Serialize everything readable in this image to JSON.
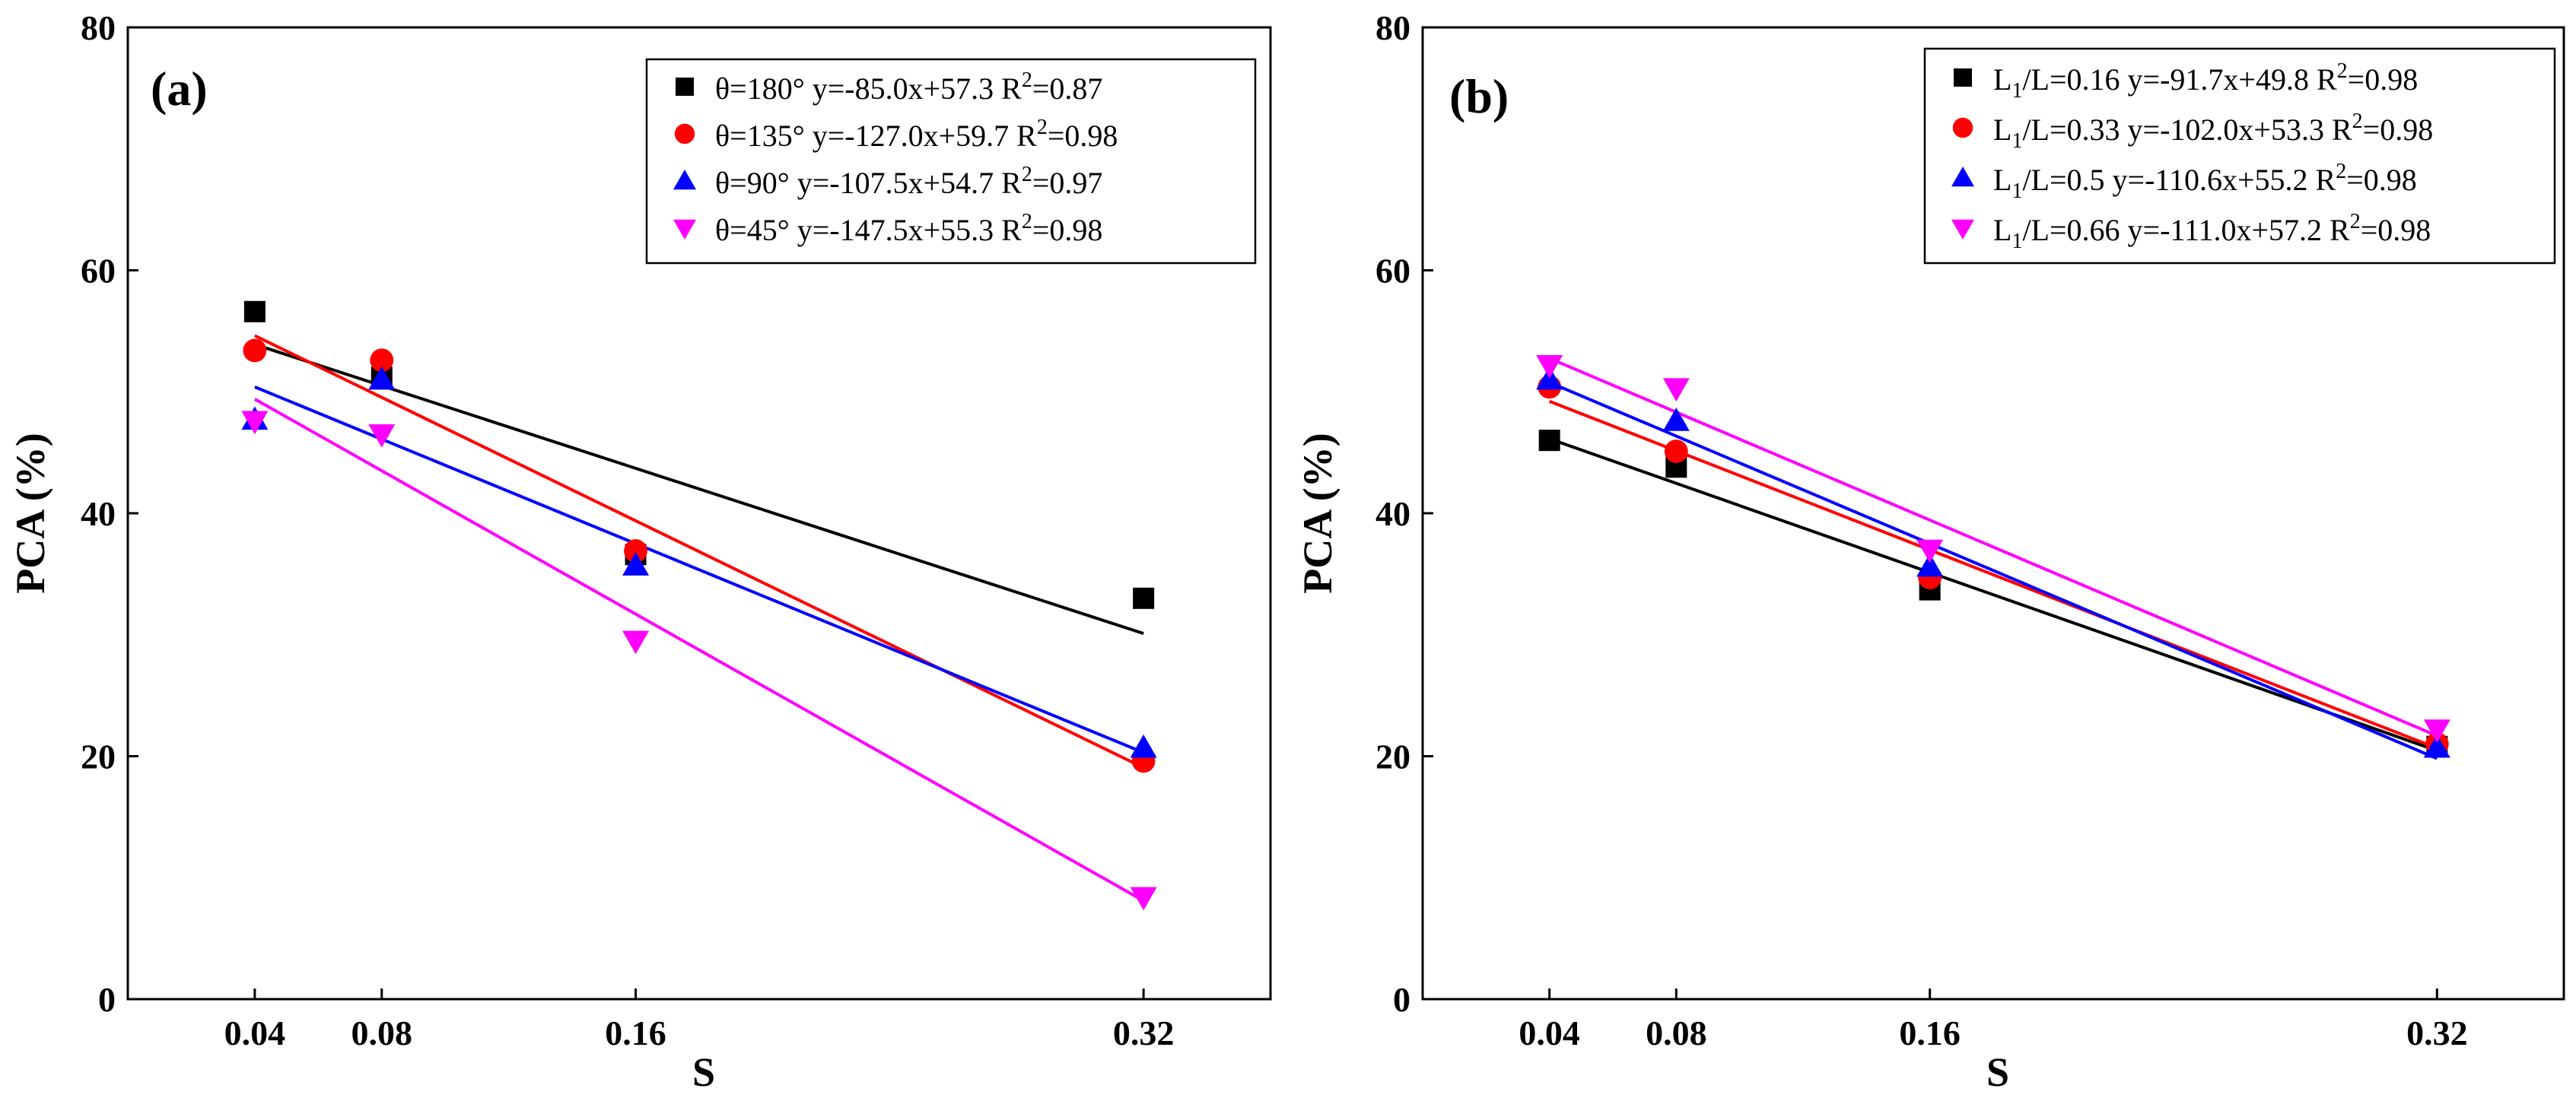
{
  "chart_data": [
    {
      "type": "scatter",
      "panel_label": "(a)",
      "xlabel": "S",
      "ylabel": "PCA (%)",
      "x_ticks": [
        0.04,
        0.08,
        0.16,
        0.32
      ],
      "x_tick_labels": [
        "0.04",
        "0.08",
        "0.16",
        "0.32"
      ],
      "y_ticks": [
        0,
        20,
        40,
        60,
        80
      ],
      "y_tick_labels": [
        "0",
        "20",
        "40",
        "60",
        "80"
      ],
      "xlim": [
        -0.0,
        0.36
      ],
      "ylim": [
        0,
        80
      ],
      "legend_position": "top-right",
      "series": [
        {
          "name": "θ=180°",
          "marker": "square",
          "color": "#000000",
          "legend_eq": "y=-85.0x+57.3",
          "legend_r2_prefix": "R",
          "legend_r2_sup": "2",
          "legend_r2_value": "=0.87",
          "x": [
            0.04,
            0.08,
            0.16,
            0.32
          ],
          "y": [
            56.6,
            51.2,
            36.6,
            33.0
          ],
          "fit": {
            "slope": -85.0,
            "intercept": 57.3
          }
        },
        {
          "name": "θ=135°",
          "marker": "circle",
          "color": "#ff0000",
          "legend_eq": "y=-127.0x+59.7",
          "legend_r2_prefix": "R",
          "legend_r2_sup": "2",
          "legend_r2_value": "=0.98",
          "x": [
            0.04,
            0.08,
            0.16,
            0.32
          ],
          "y": [
            53.4,
            52.6,
            36.9,
            19.6
          ],
          "fit": {
            "slope": -127.0,
            "intercept": 59.7
          }
        },
        {
          "name": "θ=90°",
          "marker": "triangle-up",
          "color": "#0000ff",
          "legend_eq": "y=-107.5x+54.7",
          "legend_r2_prefix": "R",
          "legend_r2_sup": "2",
          "legend_r2_value": "=0.97",
          "x": [
            0.04,
            0.08,
            0.16,
            0.32
          ],
          "y": [
            47.7,
            51.0,
            35.7,
            20.7
          ],
          "fit": {
            "slope": -107.5,
            "intercept": 54.7
          }
        },
        {
          "name": "θ=45°",
          "marker": "triangle-down",
          "color": "#ff00ff",
          "legend_eq": "y=-147.5x+55.3",
          "legend_r2_prefix": "R",
          "legend_r2_sup": "2",
          "legend_r2_value": "=0.98",
          "x": [
            0.04,
            0.08,
            0.16,
            0.32
          ],
          "y": [
            47.6,
            46.5,
            29.5,
            8.4
          ],
          "fit": {
            "slope": -147.5,
            "intercept": 55.3
          }
        }
      ]
    },
    {
      "type": "scatter",
      "panel_label": "(b)",
      "xlabel": "S",
      "ylabel": "PCA (%)",
      "x_ticks": [
        0.04,
        0.08,
        0.16,
        0.32
      ],
      "x_tick_labels": [
        "0.04",
        "0.08",
        "0.16",
        "0.32"
      ],
      "y_ticks": [
        0,
        20,
        40,
        60,
        80
      ],
      "y_tick_labels": [
        "0",
        "20",
        "40",
        "60",
        "80"
      ],
      "xlim": [
        -0.0,
        0.36
      ],
      "ylim": [
        0,
        80
      ],
      "legend_position": "top-right",
      "series": [
        {
          "name": "L1/L=0.16",
          "name_main": "L",
          "name_sub": "1",
          "name_rest": "/L=0.16",
          "marker": "square",
          "color": "#000000",
          "legend_eq": "y=-91.7x+49.8",
          "legend_r2_prefix": "R",
          "legend_r2_sup": "2",
          "legend_r2_value": "=0.98",
          "x": [
            0.04,
            0.08,
            0.16,
            0.32
          ],
          "y": [
            46.0,
            43.8,
            33.7,
            20.8
          ],
          "fit": {
            "slope": -91.7,
            "intercept": 49.8
          }
        },
        {
          "name": "L1/L=0.33",
          "name_main": "L",
          "name_sub": "1",
          "name_rest": "/L=0.33",
          "marker": "circle",
          "color": "#ff0000",
          "legend_eq": "y=-102.0x+53.3",
          "legend_r2_prefix": "R",
          "legend_r2_sup": "2",
          "legend_r2_value": "=0.98",
          "x": [
            0.04,
            0.08,
            0.16,
            0.32
          ],
          "y": [
            50.4,
            45.1,
            34.7,
            21.0
          ],
          "fit": {
            "slope": -102.0,
            "intercept": 53.3
          }
        },
        {
          "name": "L1/L=0.5",
          "name_main": "L",
          "name_sub": "1",
          "name_rest": "/L=0.5",
          "marker": "triangle-up",
          "color": "#0000ff",
          "legend_eq": "y=-110.6x+55.2",
          "legend_r2_prefix": "R",
          "legend_r2_sup": "2",
          "legend_r2_value": "=0.98",
          "x": [
            0.04,
            0.08,
            0.16,
            0.32
          ],
          "y": [
            51.0,
            47.6,
            35.6,
            20.7
          ],
          "fit": {
            "slope": -110.6,
            "intercept": 55.2
          }
        },
        {
          "name": "L1/L=0.66",
          "name_main": "L",
          "name_sub": "1",
          "name_rest": "/L=0.66",
          "marker": "triangle-down",
          "color": "#ff00ff",
          "legend_eq": "y=-111.0x+57.2",
          "legend_r2_prefix": "R",
          "legend_r2_sup": "2",
          "legend_r2_value": "=0.98",
          "x": [
            0.04,
            0.08,
            0.16,
            0.32
          ],
          "y": [
            52.2,
            50.3,
            37.0,
            22.2
          ],
          "fit": {
            "slope": -111.0,
            "intercept": 57.2
          }
        }
      ]
    }
  ]
}
